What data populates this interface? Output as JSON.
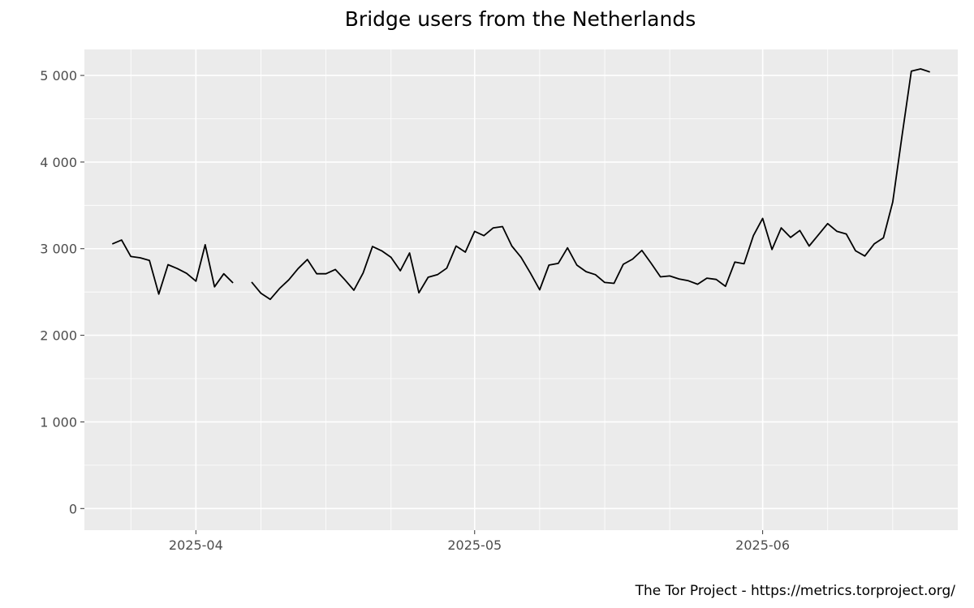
{
  "chart_data": {
    "type": "line",
    "title": "Bridge users from the Netherlands",
    "caption": "The Tor Project - https://metrics.torproject.org/",
    "xlabel": "",
    "ylabel": "",
    "x_start": "2025-03-23",
    "x_range": [
      "2025-03-20",
      "2025-06-22"
    ],
    "ylim": [
      -250,
      5300
    ],
    "y_ticks": [
      0,
      1000,
      2000,
      3000,
      4000,
      5000
    ],
    "y_tick_labels": [
      "0",
      "1 000",
      "2 000",
      "3 000",
      "4 000",
      "5 000"
    ],
    "x_ticks": [
      "2025-04-01",
      "2025-05-01",
      "2025-06-01"
    ],
    "x_tick_labels": [
      "2025-04",
      "2025-05",
      "2025-06"
    ],
    "grid": true,
    "series": [
      {
        "color": "#000000",
        "values": [
          3055,
          3100,
          2910,
          2895,
          2865,
          2475,
          2815,
          2770,
          2715,
          2625,
          3045,
          2560,
          2710,
          2605,
          null,
          2615,
          2485,
          2415,
          2540,
          2640,
          2770,
          2875,
          2710,
          2710,
          2760,
          2645,
          2520,
          2720,
          3025,
          2975,
          2900,
          2745,
          2950,
          2490,
          2670,
          2700,
          2775,
          3030,
          2960,
          3200,
          3150,
          3240,
          3255,
          3030,
          2900,
          2720,
          2525,
          2810,
          2830,
          3010,
          2810,
          2735,
          2700,
          2610,
          2600,
          2820,
          2880,
          2980,
          2830,
          2675,
          2685,
          2650,
          2630,
          2590,
          2660,
          2645,
          2565,
          2845,
          2825,
          3150,
          3350,
          2990,
          3240,
          3130,
          3210,
          3030,
          3160,
          3290,
          3200,
          3170,
          2975,
          2915,
          3055,
          3125,
          3540,
          4300,
          5050,
          5075,
          5040
        ]
      }
    ]
  }
}
